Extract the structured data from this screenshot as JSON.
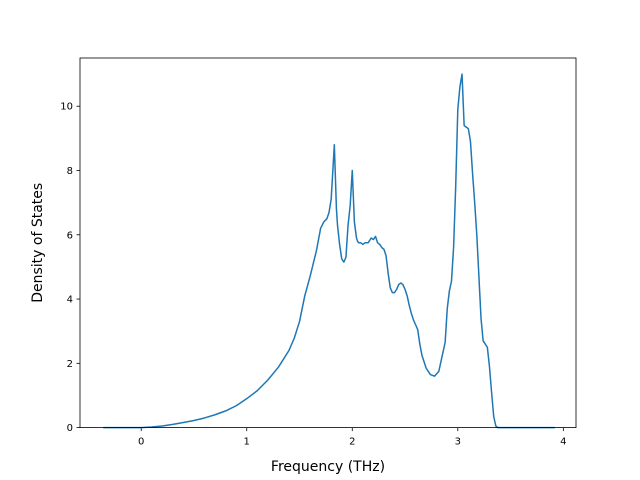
{
  "chart_data": {
    "type": "line",
    "title": "",
    "xlabel": "Frequency (THz)",
    "ylabel": "Density of States",
    "xlim": [
      -0.58,
      4.12
    ],
    "ylim": [
      0,
      11.5
    ],
    "xticks": [
      0,
      1,
      2,
      3,
      4
    ],
    "yticks": [
      0,
      2,
      4,
      6,
      8,
      10
    ],
    "grid": false,
    "legend": "none",
    "line_color": "#1f77b4",
    "series": [
      {
        "x": [
          -0.36,
          -0.2,
          0.0,
          0.1,
          0.2,
          0.3,
          0.4,
          0.5,
          0.6,
          0.7,
          0.8,
          0.9,
          1.0,
          1.1,
          1.2,
          1.3,
          1.4,
          1.45,
          1.5,
          1.55,
          1.6,
          1.63,
          1.66,
          1.7,
          1.73,
          1.76,
          1.78,
          1.8,
          1.83,
          1.85,
          1.86,
          1.88,
          1.9,
          1.92,
          1.94,
          1.96,
          1.98,
          2.0,
          2.02,
          2.04,
          2.05,
          2.06,
          2.08,
          2.1,
          2.12,
          2.15,
          2.18,
          2.2,
          2.22,
          2.24,
          2.26,
          2.28,
          2.3,
          2.32,
          2.34,
          2.36,
          2.38,
          2.4,
          2.42,
          2.44,
          2.46,
          2.48,
          2.5,
          2.52,
          2.54,
          2.56,
          2.58,
          2.6,
          2.62,
          2.64,
          2.66,
          2.7,
          2.74,
          2.78,
          2.82,
          2.85,
          2.88,
          2.9,
          2.92,
          2.94,
          2.96,
          2.98,
          3.0,
          3.02,
          3.04,
          3.06,
          3.08,
          3.1,
          3.12,
          3.14,
          3.16,
          3.18,
          3.2,
          3.22,
          3.24,
          3.26,
          3.28,
          3.3,
          3.32,
          3.34,
          3.36,
          3.38,
          3.4,
          3.42,
          3.44,
          3.46,
          3.48,
          3.5,
          3.52,
          3.54,
          3.56,
          3.6,
          3.8,
          3.92
        ],
        "y": [
          0,
          0,
          0,
          0.02,
          0.05,
          0.1,
          0.16,
          0.22,
          0.3,
          0.4,
          0.52,
          0.68,
          0.9,
          1.15,
          1.48,
          1.88,
          2.4,
          2.78,
          3.3,
          4.1,
          4.7,
          5.1,
          5.5,
          6.2,
          6.4,
          6.5,
          6.7,
          7.1,
          8.8,
          6.8,
          6.3,
          5.7,
          5.25,
          5.15,
          5.3,
          6.3,
          6.9,
          8.0,
          6.4,
          5.9,
          5.8,
          5.75,
          5.75,
          5.7,
          5.75,
          5.75,
          5.9,
          5.85,
          5.95,
          5.75,
          5.7,
          5.6,
          5.55,
          5.35,
          4.8,
          4.35,
          4.2,
          4.2,
          4.3,
          4.45,
          4.5,
          4.45,
          4.3,
          4.1,
          3.8,
          3.55,
          3.35,
          3.2,
          3.05,
          2.6,
          2.25,
          1.85,
          1.65,
          1.6,
          1.75,
          2.2,
          2.65,
          3.7,
          4.25,
          4.55,
          5.6,
          7.5,
          9.9,
          10.6,
          11.0,
          9.4,
          9.35,
          9.3,
          8.9,
          7.9,
          7.0,
          6.0,
          4.7,
          3.4,
          2.7,
          2.6,
          2.5,
          1.9,
          1.1,
          0.35,
          0.05,
          0,
          0,
          0,
          0,
          0,
          0,
          0,
          0,
          0,
          0,
          0,
          0,
          0
        ]
      }
    ]
  }
}
